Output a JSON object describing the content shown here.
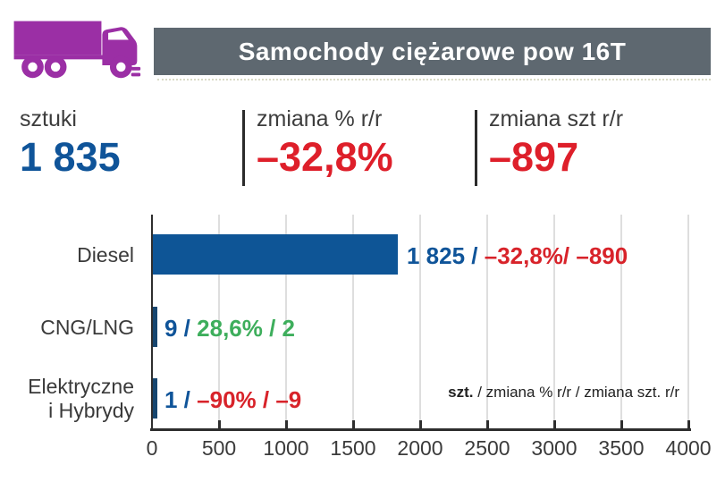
{
  "header": {
    "title": "Samochody ciężarowe pow 16T"
  },
  "icons": {
    "truck": "truck-icon"
  },
  "colors": {
    "truck_purple": "#9B2FA5",
    "header_slate": "#5E6870",
    "bar_blue": "#0E5596",
    "value_blue": "#0F5499",
    "negative_red": "#DE1F2A",
    "positive_green": "#3EAE5C",
    "axis_dark": "#2e2e2e",
    "gridline_gray": "#dedede"
  },
  "summary": {
    "units": {
      "label": "sztuki",
      "value": "1 835"
    },
    "pct_change": {
      "label": "zmiana % r/r",
      "value": "–32,8%"
    },
    "unit_change": {
      "label": "zmiana szt r/r",
      "value": "–897"
    }
  },
  "chart_data": {
    "type": "bar",
    "orientation": "horizontal",
    "categories": [
      "Diesel",
      "CNG/LNG",
      "Elektryczne i Hybrydy"
    ],
    "series": [
      {
        "name": "szt.",
        "values": [
          1825,
          9,
          1
        ]
      },
      {
        "name": "zmiana % r/r",
        "values": [
          -32.8,
          28.6,
          -90
        ]
      },
      {
        "name": "zmiana szt. r/r",
        "values": [
          -890,
          2,
          -9
        ]
      }
    ],
    "xlim": [
      0,
      4000
    ],
    "xticks": [
      "0",
      "500",
      "1000",
      "1500",
      "2000",
      "2500",
      "3000",
      "3500",
      "4000"
    ],
    "grid": true,
    "legend_note": {
      "bold": "szt.",
      "rest": " / zmiana % r/r / zmiana szt. r/r"
    },
    "rows": [
      {
        "category_lines": [
          "Diesel"
        ],
        "bar_value": 1825,
        "value_text": "1 825 /",
        "change_text": " –32,8%/ –890",
        "change_sign": "negative"
      },
      {
        "category_lines": [
          "CNG/LNG"
        ],
        "bar_value": 9,
        "value_text": "9 /",
        "change_text": " 28,6% / 2",
        "change_sign": "positive"
      },
      {
        "category_lines": [
          "Elektryczne",
          "i Hybrydy"
        ],
        "bar_value": 1,
        "value_text": "1 /",
        "change_text": " –90% / –9",
        "change_sign": "negative"
      }
    ]
  }
}
